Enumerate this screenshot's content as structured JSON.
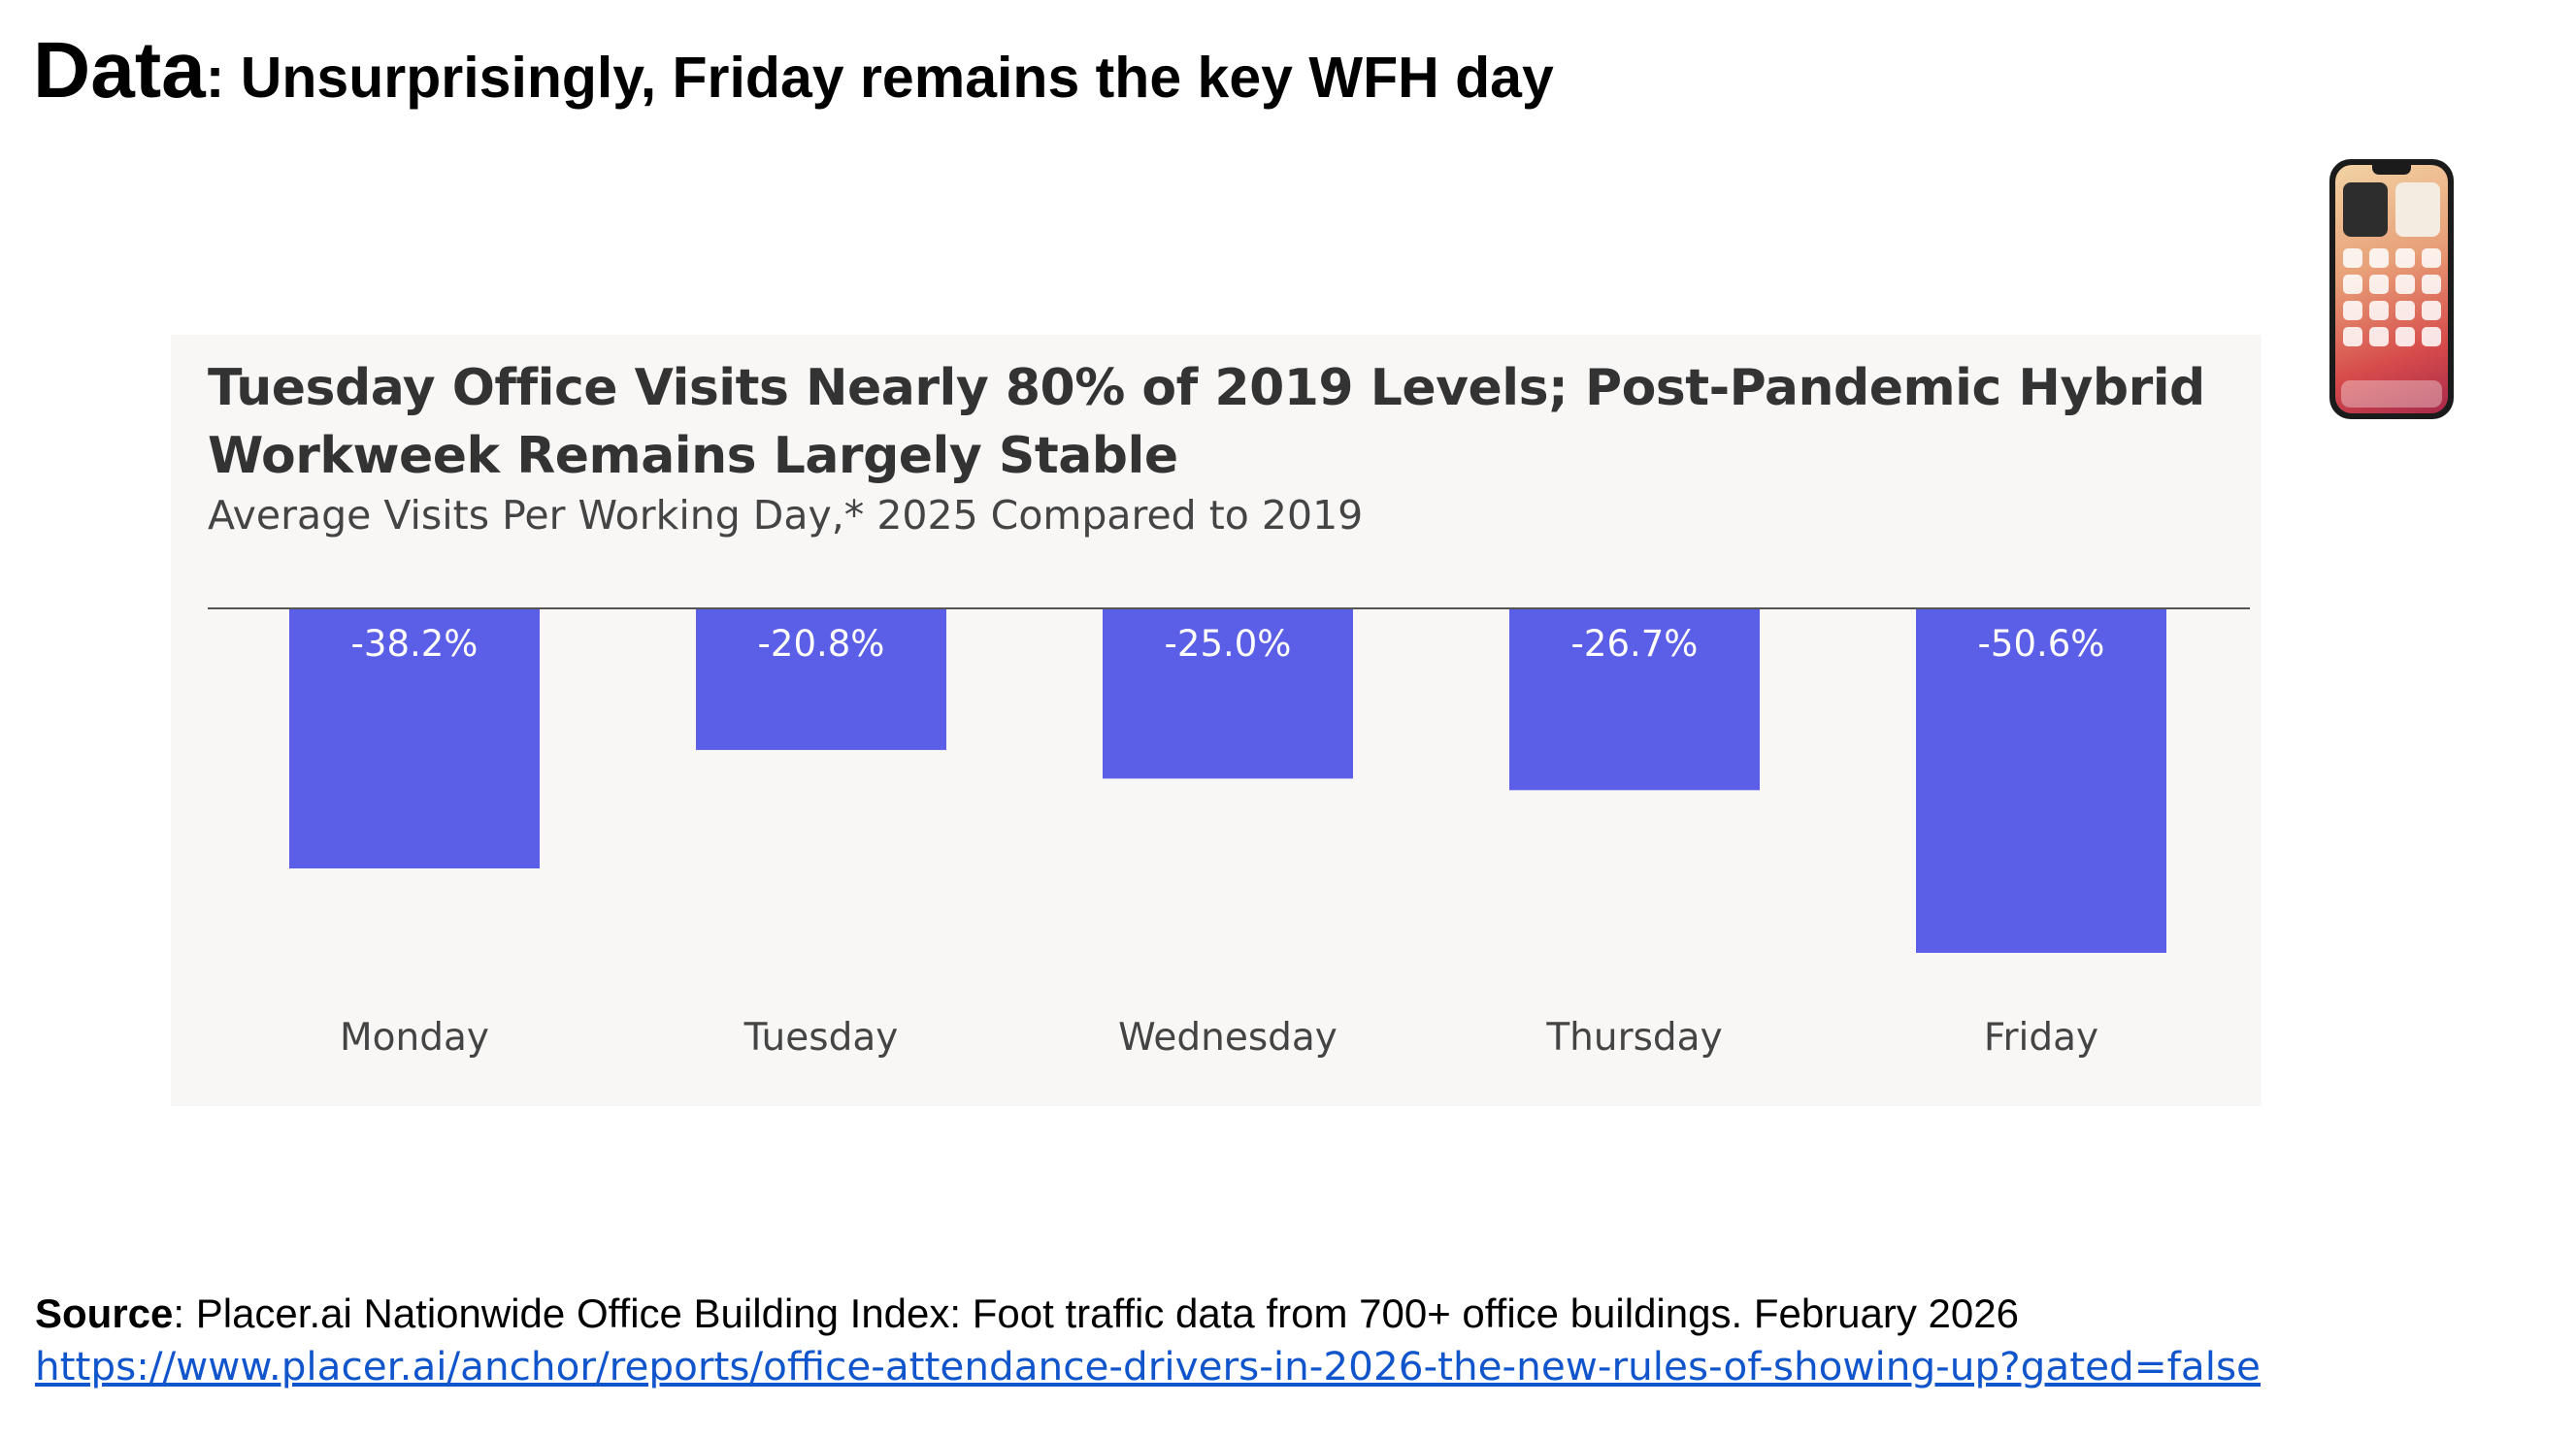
{
  "slide": {
    "title_lead": "Data",
    "title_rest": ": Unsurprisingly, Friday remains the key WFH day"
  },
  "chart_data": {
    "type": "bar",
    "title": "Tuesday Office Visits Nearly 80% of 2019 Levels; Post-Pandemic Hybrid Workweek Remains Largely Stable",
    "subtitle": "Average Visits Per Working Day,* 2025 Compared to 2019",
    "categories": [
      "Monday",
      "Tuesday",
      "Wednesday",
      "Thursday",
      "Friday"
    ],
    "values": [
      -38.2,
      -20.8,
      -25.0,
      -26.7,
      -50.6
    ],
    "data_labels": [
      "-38.2%",
      "-20.8%",
      "-25.0%",
      "-26.7%",
      "-50.6%"
    ],
    "unit": "%",
    "ylim": [
      -55,
      0
    ],
    "bar_color": "#5b5ee6",
    "grid": false,
    "legend": "none"
  },
  "source": {
    "label": "Source",
    "text": ": Placer.ai Nationwide Office Building Index: Foot traffic data from 700+ office buildings. February 2026",
    "link": "https://www.placer.ai/anchor/reports/office-attendance-drivers-in-2026-the-new-rules-of-showing-up?gated=false"
  },
  "decor": {
    "phone_icon": "smartphone-icon",
    "link_color": "#1155cc",
    "card_background": "#f8f7f6"
  }
}
